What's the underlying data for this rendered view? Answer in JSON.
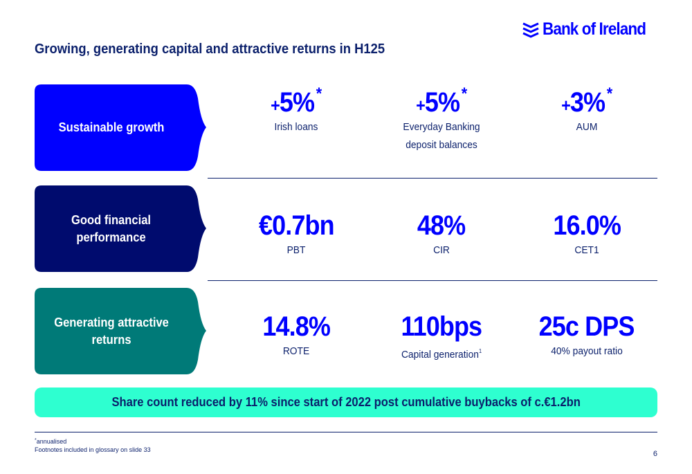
{
  "brand": {
    "name": "Bank of Ireland"
  },
  "title": "Growing, generating capital and attractive returns in H125",
  "rows": [
    {
      "label_line1": "Sustainable growth",
      "label_line2": "",
      "color": "#0000ff",
      "metrics": [
        {
          "prefix": "+",
          "value": "5%",
          "star": "*",
          "caption1": "Irish loans",
          "caption2": "",
          "sup": ""
        },
        {
          "prefix": "+",
          "value": "5%",
          "star": "*",
          "caption1": "Everyday Banking",
          "caption2": "deposit balances",
          "sup": ""
        },
        {
          "prefix": "+",
          "value": "3%",
          "star": "*",
          "caption1": "AUM",
          "caption2": "",
          "sup": ""
        }
      ]
    },
    {
      "label_line1": "Good financial",
      "label_line2": "performance",
      "color": "#000b6e",
      "metrics": [
        {
          "prefix": "",
          "value": "€0.7bn",
          "star": "",
          "caption1": "PBT",
          "caption2": "",
          "sup": ""
        },
        {
          "prefix": "",
          "value": "48%",
          "star": "",
          "caption1": "CIR",
          "caption2": "",
          "sup": ""
        },
        {
          "prefix": "",
          "value": "16.0%",
          "star": "",
          "caption1": "CET1",
          "caption2": "",
          "sup": ""
        }
      ]
    },
    {
      "label_line1": "Generating attractive",
      "label_line2": "returns",
      "color": "#007a78",
      "metrics": [
        {
          "prefix": "",
          "value": "14.8%",
          "star": "",
          "caption1": "ROTE",
          "caption2": "",
          "sup": ""
        },
        {
          "prefix": "",
          "value": "110bps",
          "star": "",
          "caption1": "Capital generation",
          "caption2": "",
          "sup": "1"
        },
        {
          "prefix": "",
          "value": "25c DPS",
          "star": "",
          "caption1": "40% payout ratio",
          "caption2": "",
          "sup": ""
        }
      ]
    }
  ],
  "banner": "Share count reduced by 11% since start of 2022 post cumulative buybacks of c.€1.2bn",
  "footnotes": {
    "star_mark": "*",
    "annualised": "annualised",
    "glossary": "Footnotes included in glossary on slide 33"
  },
  "page_number": "6",
  "colors": {
    "accent": "#0000ff",
    "navy": "#0a1f6b",
    "teal": "#007a78",
    "mint": "#2effd0"
  }
}
